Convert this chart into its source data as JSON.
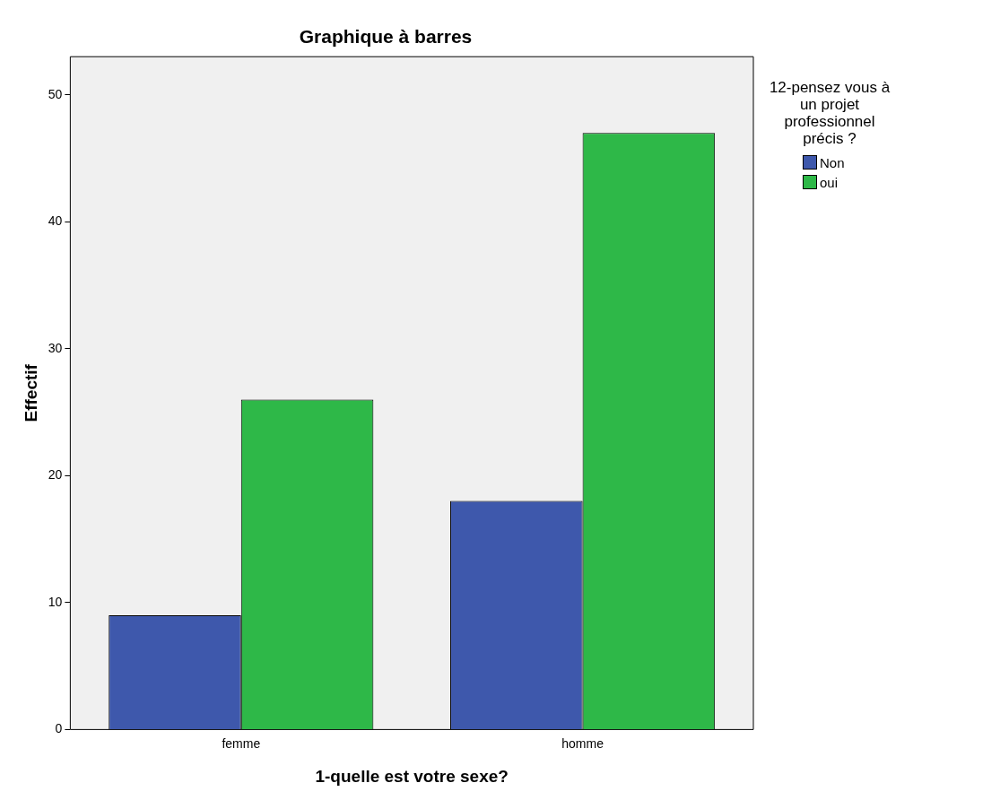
{
  "chart_data": {
    "type": "bar",
    "title": "Graphique à barres",
    "xlabel": "1-quelle est votre sexe?",
    "ylabel": "Effectif",
    "legend_title": "12-pensez vous à un projet professionnel précis ?",
    "categories": [
      "femme",
      "homme"
    ],
    "series": [
      {
        "name": "Non",
        "color": "#3e58ac",
        "values": [
          9,
          18
        ]
      },
      {
        "name": "oui",
        "color": "#2eb848",
        "values": [
          26,
          47
        ]
      }
    ],
    "ylim": [
      0,
      53
    ],
    "yticks": [
      0,
      10,
      20,
      30,
      40,
      50
    ],
    "grid": false,
    "legend": "top right"
  }
}
